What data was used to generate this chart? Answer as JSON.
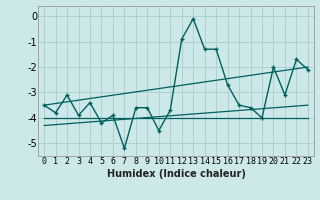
{
  "xlabel": "Humidex (Indice chaleur)",
  "ylabel": "",
  "xlim": [
    -0.5,
    23.5
  ],
  "ylim": [
    -5.5,
    0.4
  ],
  "yticks": [
    0,
    -1,
    -2,
    -3,
    -4,
    -5
  ],
  "xticks": [
    0,
    1,
    2,
    3,
    4,
    5,
    6,
    7,
    8,
    9,
    10,
    11,
    12,
    13,
    14,
    15,
    16,
    17,
    18,
    19,
    20,
    21,
    22,
    23
  ],
  "bg_color": "#cce8e8",
  "line_color": "#006060",
  "grid_color": "#b0d0d0",
  "main_line_x": [
    0,
    1,
    2,
    3,
    4,
    5,
    6,
    7,
    8,
    9,
    10,
    11,
    12,
    13,
    14,
    15,
    16,
    17,
    18,
    19,
    20,
    21,
    22,
    23
  ],
  "main_line_y": [
    -3.5,
    -3.8,
    -3.1,
    -3.9,
    -3.4,
    -4.2,
    -3.9,
    -5.2,
    -3.6,
    -3.6,
    -4.5,
    -3.7,
    -0.9,
    -0.1,
    -1.3,
    -1.3,
    -2.7,
    -3.5,
    -3.6,
    -4.0,
    -2.0,
    -3.1,
    -1.7,
    -2.1
  ],
  "trend1_x": [
    0,
    23
  ],
  "trend1_y": [
    -3.5,
    -2.0
  ],
  "trend2_x": [
    0,
    23
  ],
  "trend2_y": [
    -4.0,
    -4.0
  ],
  "trend3_x": [
    0,
    23
  ],
  "trend3_y": [
    -4.3,
    -3.5
  ],
  "xlabel_fontsize": 7,
  "xlabel_fontweight": "bold",
  "tick_fontsize": 6,
  "ytick_fontsize": 7
}
